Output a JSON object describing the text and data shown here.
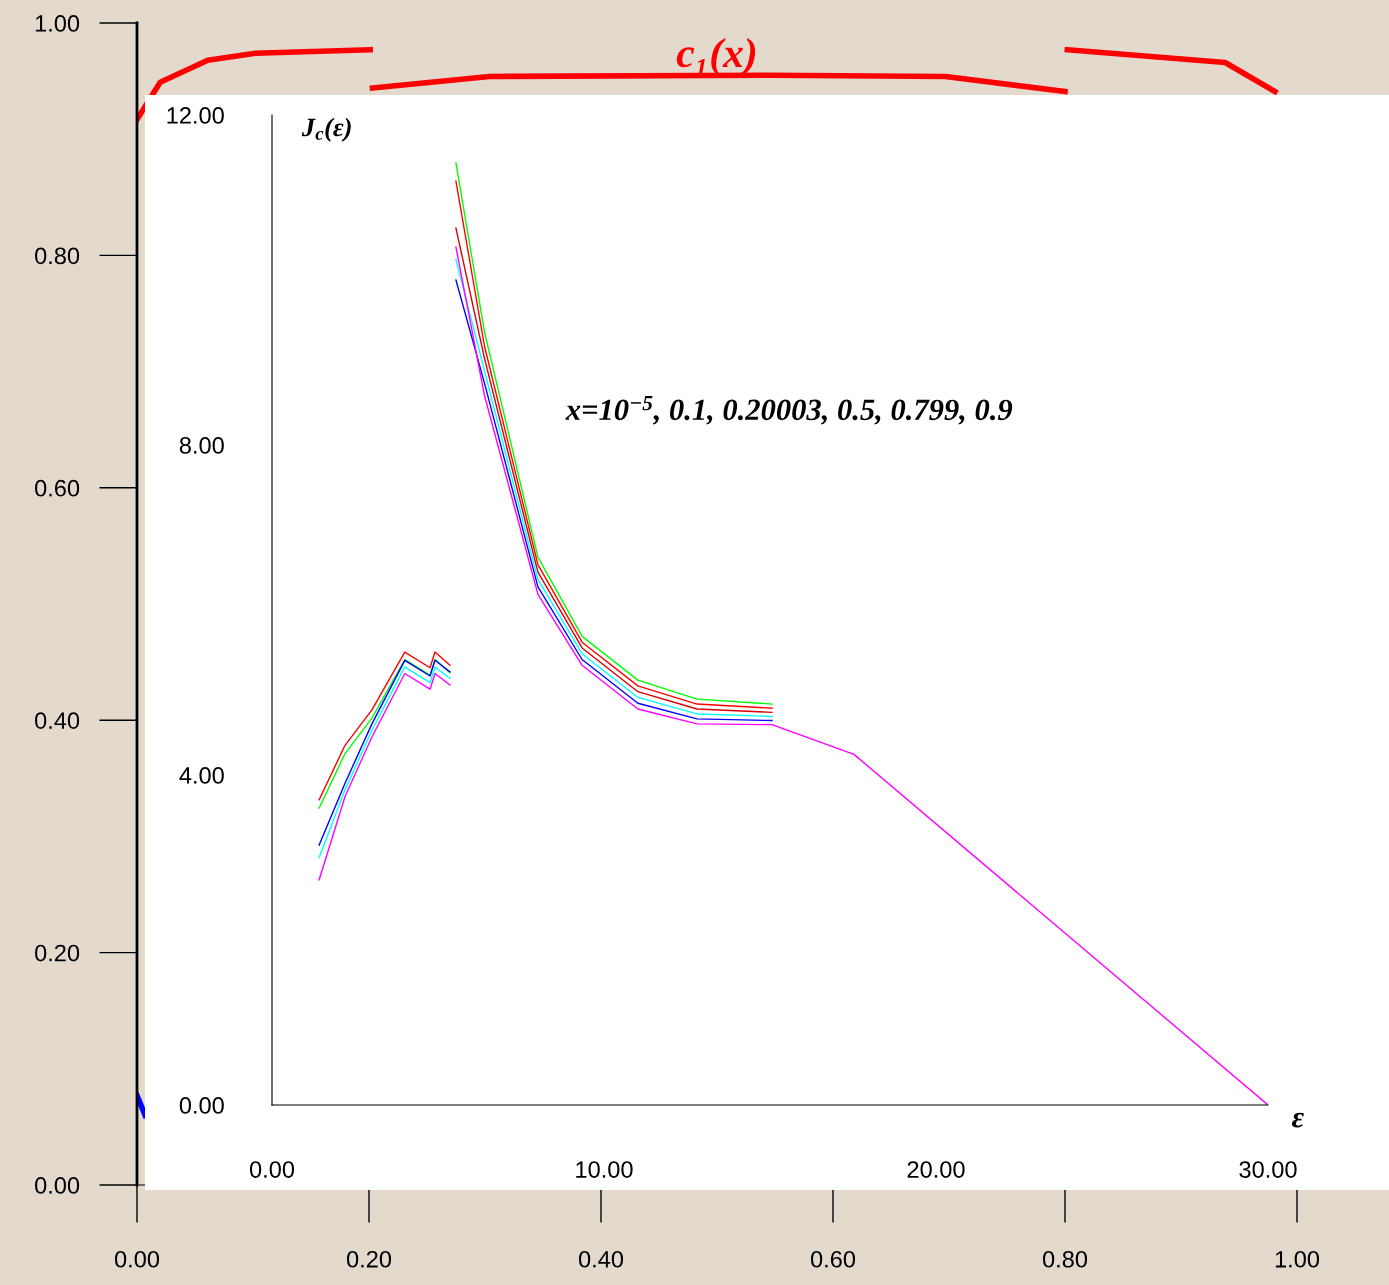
{
  "chart_data": [
    {
      "type": "line",
      "title": "c₁(x)",
      "xlim": [
        0,
        1
      ],
      "ylim": [
        0,
        1
      ],
      "xticks": [
        {
          "value": 0,
          "label": "0.00"
        },
        {
          "value": 0.2,
          "label": "0.20"
        },
        {
          "value": 0.4,
          "label": "0.40"
        },
        {
          "value": 0.6,
          "label": "0.60"
        },
        {
          "value": 0.8,
          "label": "0.80"
        },
        {
          "value": 1,
          "label": "1.00"
        }
      ],
      "yticks": [
        {
          "value": 0,
          "label": "0.00"
        },
        {
          "value": 0.2,
          "label": "0.20"
        },
        {
          "value": 0.4,
          "label": "0.40"
        },
        {
          "value": 0.6,
          "label": "0.60"
        },
        {
          "value": 0.8,
          "label": "0.80"
        },
        {
          "value": 1,
          "label": "1.00"
        }
      ],
      "series": [
        {
          "color": "#ff0000",
          "x": [
            0,
            0.02,
            0.061,
            0.102,
            0.201,
            0.202,
            0.203,
            0.304,
            0.546,
            0.697,
            0.8,
            0.801,
            0.802,
            0.938,
            0.981
          ],
          "values": [
            0.917,
            0.949,
            0.968,
            0.974,
            0.977,
            null,
            0.944,
            0.954,
            0.955,
            0.954,
            0.941,
            null,
            0.977,
            0.966,
            0.941
          ]
        },
        {
          "color": "#0000ff",
          "x": [
            0,
            0.007
          ],
          "values": [
            0.077,
            0.06
          ]
        }
      ]
    },
    {
      "type": "line",
      "ylabel": "J$_{c}$(ε)",
      "xlabel": "ε",
      "xlim": [
        0,
        30
      ],
      "ylim": [
        0,
        12
      ],
      "xticks": [
        {
          "value": 0,
          "label": "0.00"
        },
        {
          "value": 10,
          "label": "10.00"
        },
        {
          "value": 20,
          "label": "20.00"
        },
        {
          "value": 30,
          "label": "30.00"
        }
      ],
      "yticks": [
        {
          "value": 0,
          "label": "0.00"
        },
        {
          "value": 4,
          "label": "4.00"
        },
        {
          "value": 8,
          "label": "8.00"
        },
        {
          "value": 12,
          "label": "12.00"
        }
      ],
      "annotations": [
        "x=10$^{−5}$, 0.1, 0.20003, 0.5, 0.799, 0.9"
      ],
      "x": [
        1.42,
        2.2,
        3.01,
        4.0,
        4.76,
        4.91,
        5.36,
        5.45,
        5.54,
        6.4,
        8.01,
        9.34,
        11.02,
        12.8,
        15.06,
        17.53,
        30
      ],
      "series": [
        {
          "color": "#00ff00",
          "values": [
            3.6,
            4.26,
            4.69,
            5.4,
            5.21,
            5.4,
            5.24,
            null,
            11.42,
            9.37,
            6.64,
            5.68,
            5.15,
            4.92,
            4.86,
            null,
            null
          ]
        },
        {
          "color": "#ff0000",
          "values": [
            3.7,
            4.36,
            4.79,
            5.49,
            5.3,
            5.49,
            5.33,
            null,
            11.2,
            9.2,
            6.55,
            5.61,
            5.08,
            4.86,
            4.81,
            null,
            null
          ]
        },
        {
          "color": "#d80000",
          "values": [
            null,
            null,
            null,
            null,
            null,
            null,
            null,
            null,
            10.63,
            9.05,
            6.46,
            5.54,
            5.01,
            4.8,
            4.76,
            null,
            null
          ]
        },
        {
          "color": "#00ffff",
          "values": [
            3.0,
            3.82,
            4.54,
            5.31,
            5.12,
            5.31,
            5.17,
            null,
            10.25,
            8.9,
            6.37,
            5.47,
            4.94,
            4.74,
            4.71,
            null,
            null
          ]
        },
        {
          "color": "#0000ff",
          "values": [
            3.15,
            3.9,
            4.62,
            5.39,
            5.2,
            5.39,
            5.25,
            null,
            10.0,
            8.75,
            6.28,
            5.4,
            4.87,
            4.68,
            4.66,
            null,
            null
          ]
        },
        {
          "color": "#ff00ff",
          "values": [
            2.73,
            3.74,
            4.46,
            5.23,
            5.04,
            5.23,
            5.09,
            null,
            10.4,
            8.6,
            6.19,
            5.33,
            4.8,
            4.62,
            4.61,
            4.25,
            0
          ]
        }
      ]
    }
  ]
}
